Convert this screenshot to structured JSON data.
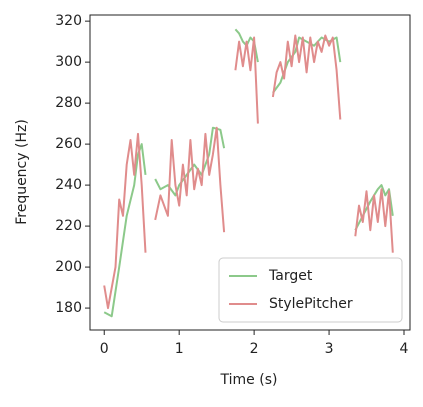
{
  "chart_data": {
    "type": "line",
    "xlabel": "Time (s)",
    "ylabel": "Frequency (Hz)",
    "xlim": [
      -0.19,
      4.08
    ],
    "ylim": [
      169.3,
      323
    ],
    "xticks": [
      0,
      1,
      2,
      3,
      4
    ],
    "yticks": [
      180,
      200,
      220,
      240,
      260,
      280,
      300,
      320
    ],
    "legend": "lower right",
    "series": [
      {
        "name": "Target",
        "color": "#8cc98a",
        "x": [
          0,
          0.1,
          0.2,
          0.3,
          0.4,
          0.45,
          0.5,
          0.55,
          null,
          0.68,
          0.75,
          0.85,
          0.95,
          1.0,
          1.1,
          1.2,
          1.3,
          1.4,
          1.45,
          1.55,
          1.6,
          null,
          1.75,
          1.8,
          1.85,
          1.9,
          1.95,
          2.0,
          2.05,
          null,
          2.25,
          2.35,
          2.45,
          2.55,
          2.6,
          2.7,
          2.8,
          2.9,
          3.0,
          3.1,
          3.15,
          null,
          3.35,
          3.45,
          3.55,
          3.65,
          3.7,
          3.75,
          3.8,
          3.85
        ],
        "values": [
          178,
          176,
          200,
          225,
          240,
          255,
          260,
          245,
          null,
          243,
          238,
          240,
          235,
          240,
          245,
          250,
          245,
          255,
          268,
          267,
          258,
          null,
          316,
          314,
          310,
          308,
          312,
          310,
          300,
          null,
          285,
          290,
          300,
          305,
          312,
          310,
          308,
          312,
          310,
          312,
          300,
          null,
          218,
          225,
          232,
          238,
          240,
          235,
          238,
          225
        ]
      },
      {
        "name": "StylePitcher",
        "color": "#e08c8c",
        "x": [
          0,
          0.05,
          0.15,
          0.2,
          0.25,
          0.3,
          0.35,
          0.4,
          0.45,
          0.5,
          0.55,
          null,
          0.68,
          0.75,
          0.85,
          0.9,
          0.95,
          1.0,
          1.05,
          1.1,
          1.15,
          1.2,
          1.25,
          1.3,
          1.35,
          1.4,
          1.45,
          1.5,
          1.55,
          1.6,
          null,
          1.75,
          1.8,
          1.85,
          1.9,
          1.95,
          2.0,
          2.05,
          null,
          2.25,
          2.3,
          2.35,
          2.4,
          2.45,
          2.5,
          2.55,
          2.6,
          2.65,
          2.7,
          2.75,
          2.8,
          2.85,
          2.9,
          2.95,
          3.0,
          3.05,
          3.1,
          3.15,
          null,
          3.35,
          3.4,
          3.45,
          3.5,
          3.55,
          3.6,
          3.65,
          3.7,
          3.75,
          3.8,
          3.85
        ],
        "values": [
          191,
          180,
          200,
          233,
          225,
          250,
          262,
          245,
          265,
          240,
          207,
          null,
          223,
          235,
          225,
          262,
          240,
          230,
          250,
          235,
          262,
          238,
          248,
          240,
          265,
          245,
          255,
          268,
          240,
          217,
          null,
          296,
          310,
          298,
          310,
          296,
          312,
          270,
          null,
          283,
          295,
          300,
          292,
          310,
          298,
          313,
          300,
          312,
          295,
          312,
          300,
          310,
          305,
          313,
          308,
          312,
          296,
          272,
          null,
          215,
          230,
          222,
          237,
          218,
          235,
          222,
          238,
          220,
          237,
          207
        ]
      }
    ]
  }
}
